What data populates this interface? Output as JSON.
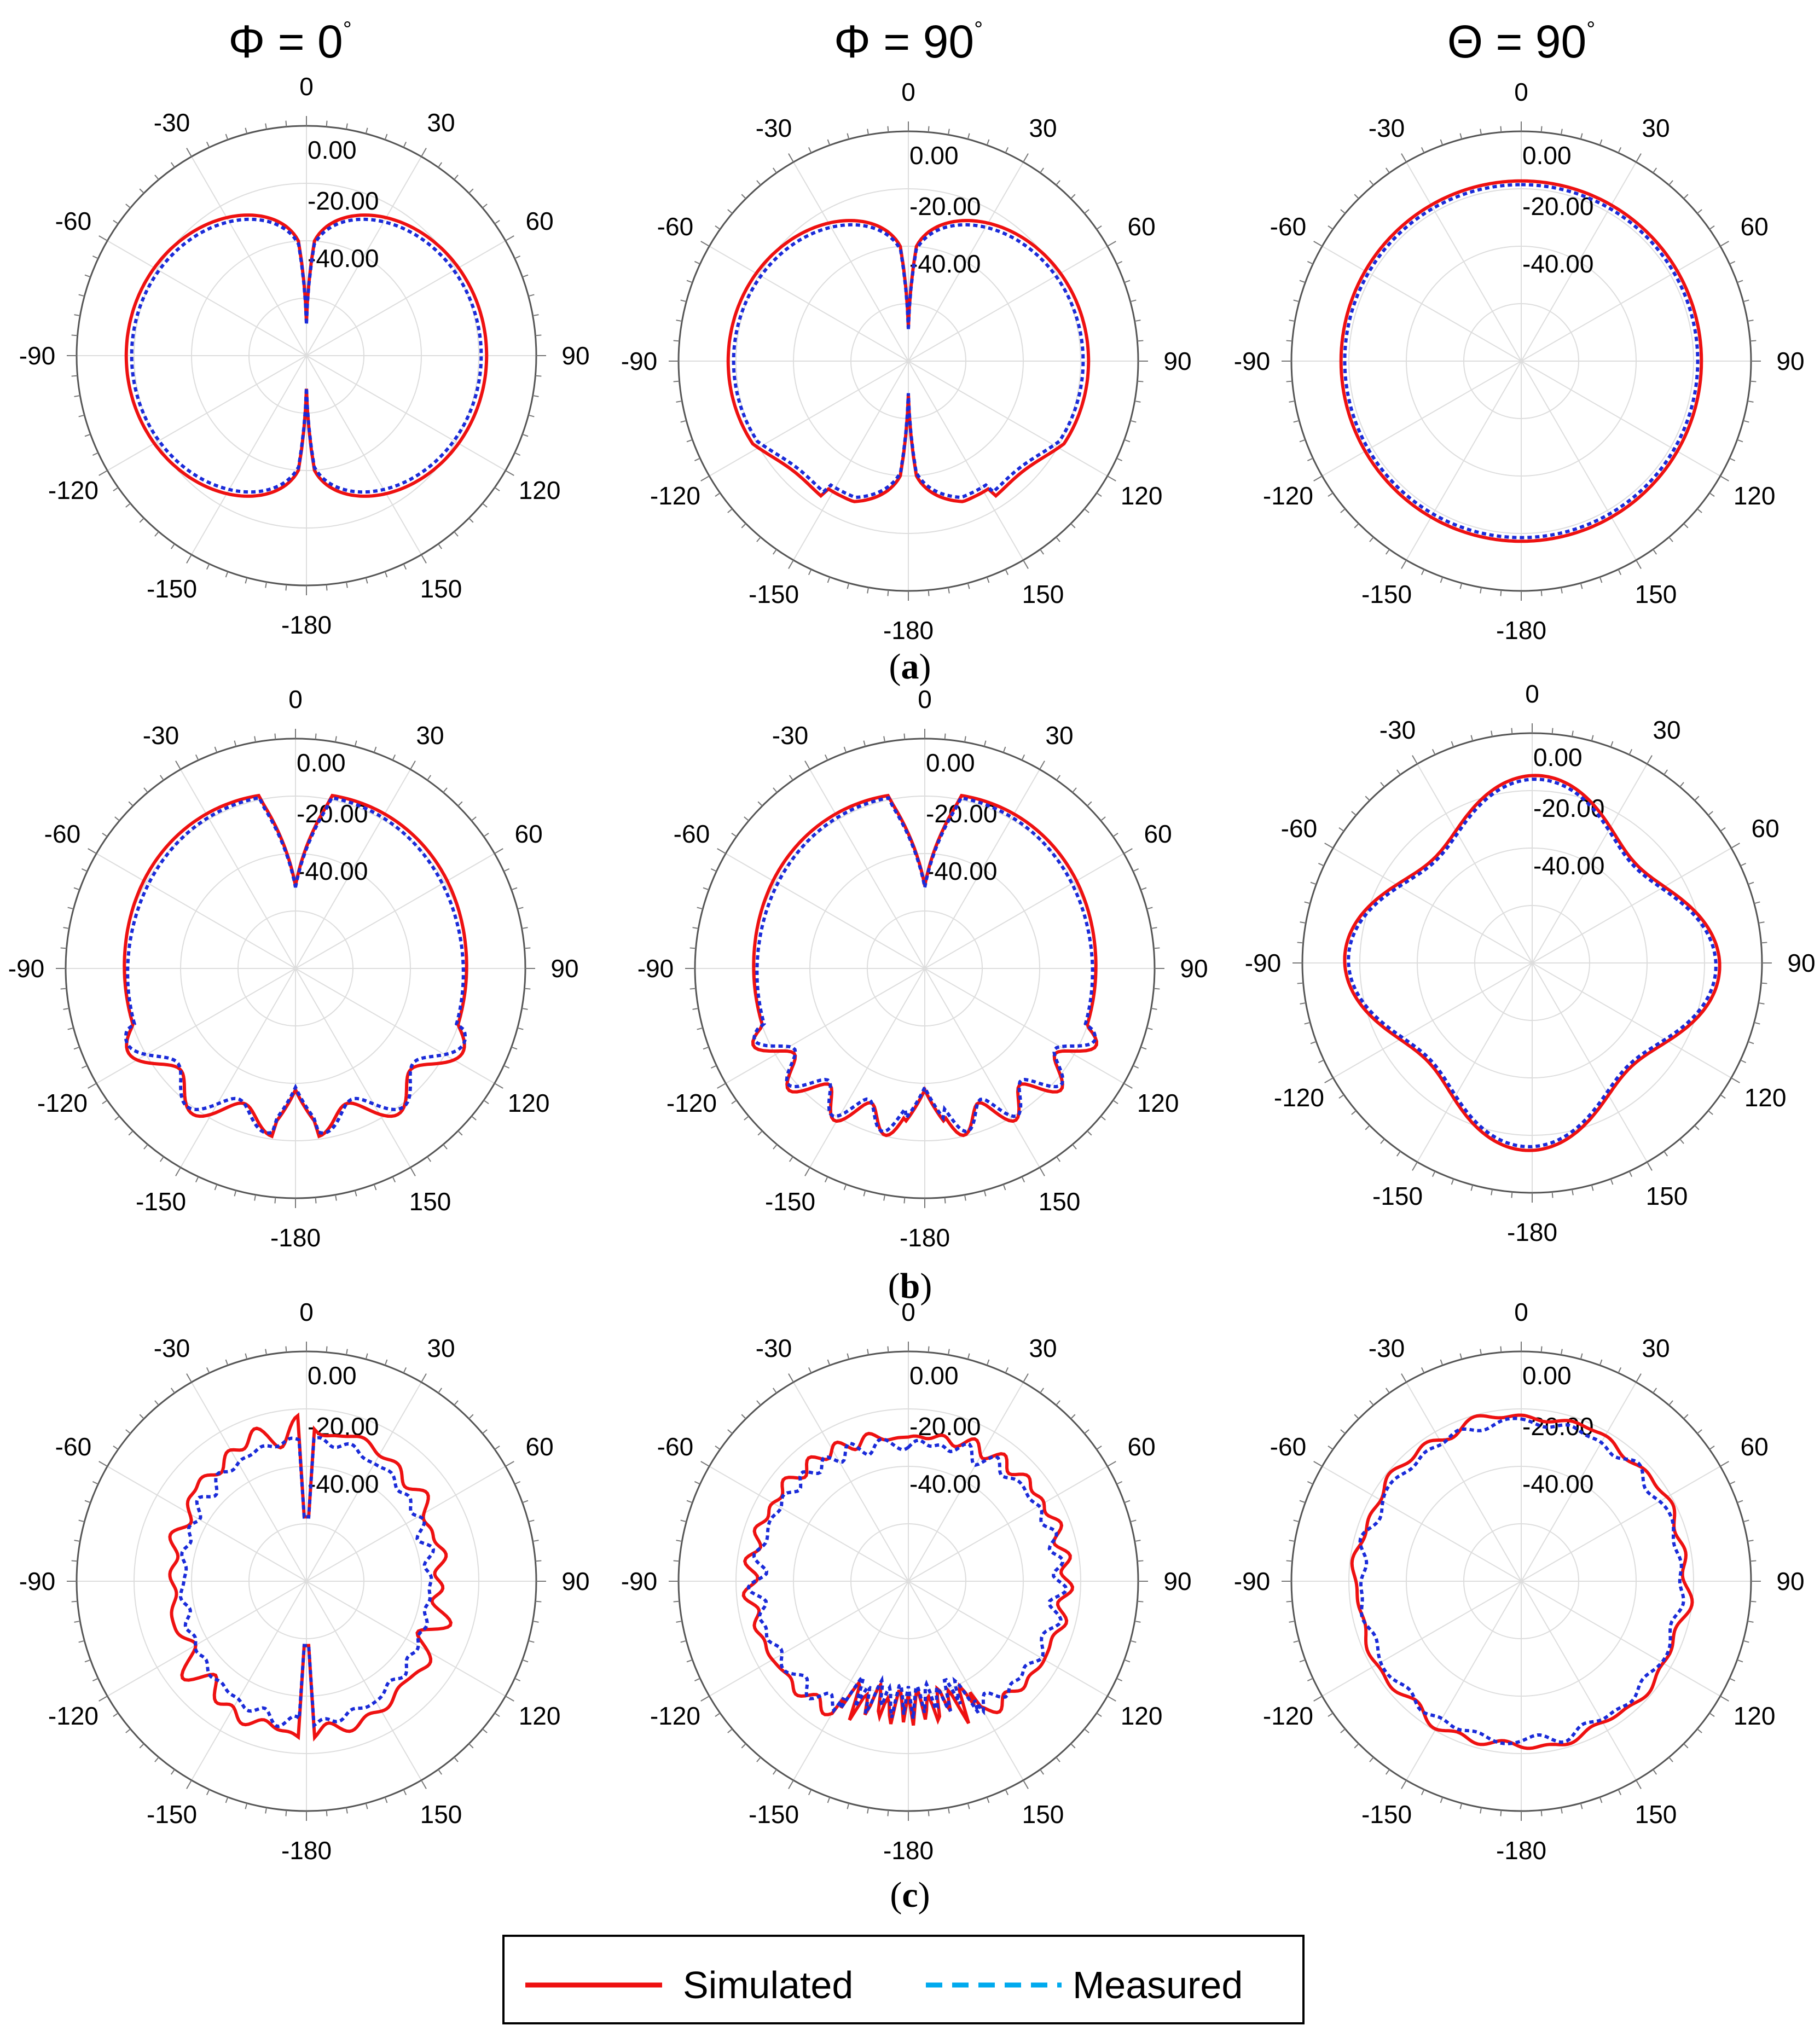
{
  "figure": {
    "column_titles": [
      {
        "main": "Φ = 0",
        "sup": "°"
      },
      {
        "main": "Φ = 90",
        "sup": "°"
      },
      {
        "main": "Θ = 90",
        "sup": "°"
      }
    ],
    "row_captions": [
      "a",
      "b",
      "c"
    ],
    "legend": [
      {
        "label": "Simulated",
        "color": "#ee1111",
        "style": "solid"
      },
      {
        "label": "Measured",
        "color": "#00aaee",
        "style": "dashed"
      }
    ]
  },
  "chart_data": [
    {
      "type": "polar",
      "row": "a",
      "column": "Φ = 0°",
      "angle_ticks": [
        "0",
        "30",
        "60",
        "90",
        "120",
        "150",
        "-180",
        "-150",
        "-120",
        "-90",
        "-60",
        "-30"
      ],
      "radial_labels": [
        "0.00",
        "-20.00",
        "-40.00"
      ],
      "rlim": [
        -50,
        0
      ],
      "series": [
        {
          "name": "Simulated",
          "model": {
            "kind": "sinshape",
            "floor": -46,
            "scale": 1.0
          }
        },
        {
          "name": "Measured",
          "model": {
            "kind": "sinshape",
            "floor": -46,
            "scale": 0.97
          }
        }
      ]
    },
    {
      "type": "polar",
      "row": "a",
      "column": "Φ = 90°",
      "angle_ticks": [
        "0",
        "30",
        "60",
        "90",
        "120",
        "150",
        "-180",
        "-150",
        "-120",
        "-90",
        "-60",
        "-30"
      ],
      "radial_labels": [
        "0.00",
        "-20.00",
        "-40.00"
      ],
      "rlim": [
        -50,
        0
      ],
      "series": [
        {
          "name": "Simulated",
          "model": {
            "kind": "sinshape",
            "floor": -46,
            "scale": 1.0,
            "rearShoulder": true
          }
        },
        {
          "name": "Measured",
          "model": {
            "kind": "sinshape",
            "floor": -46,
            "scale": 0.97,
            "rearShoulder": true
          }
        }
      ]
    },
    {
      "type": "polar",
      "row": "a",
      "column": "Θ = 90°",
      "angle_ticks": [
        "0",
        "30",
        "60",
        "90",
        "120",
        "150",
        "-180",
        "-150",
        "-120",
        "-90",
        "-60",
        "-30"
      ],
      "radial_labels": [
        "0.00",
        "-20.00",
        "-40.00"
      ],
      "rlim": [
        -50,
        0
      ],
      "series": [
        {
          "name": "Simulated",
          "model": {
            "kind": "circle",
            "r": 0.98
          }
        },
        {
          "name": "Measured",
          "model": {
            "kind": "circle",
            "r": 0.96
          }
        }
      ]
    },
    {
      "type": "polar",
      "row": "b",
      "column": "Φ = 0°",
      "angle_ticks": [
        "0",
        "30",
        "60",
        "90",
        "120",
        "150",
        "-180",
        "-150",
        "-120",
        "-90",
        "-60",
        "-30"
      ],
      "radial_labels": [
        "0.00",
        "-20.00",
        "-40.00"
      ],
      "rlim": [
        -50,
        0
      ],
      "series": [
        {
          "name": "Simulated",
          "model": {
            "kind": "backlobes",
            "nullDepth": 0.62,
            "ripple": 5,
            "scale": 1.0
          }
        },
        {
          "name": "Measured",
          "model": {
            "kind": "backlobes",
            "nullDepth": 0.62,
            "ripple": 5,
            "scale": 0.98,
            "phase": 0.6
          }
        }
      ]
    },
    {
      "type": "polar",
      "row": "b",
      "column": "Φ = 90°",
      "angle_ticks": [
        "0",
        "30",
        "60",
        "90",
        "120",
        "150",
        "-180",
        "-150",
        "-120",
        "-90",
        "-60",
        "-30"
      ],
      "radial_labels": [
        "0.00",
        "-20.00",
        "-40.00"
      ],
      "rlim": [
        -50,
        0
      ],
      "series": [
        {
          "name": "Simulated",
          "model": {
            "kind": "backlobes",
            "nullDepth": 0.55,
            "ripple": 8,
            "scale": 1.0
          }
        },
        {
          "name": "Measured",
          "model": {
            "kind": "backlobes",
            "nullDepth": 0.55,
            "ripple": 8,
            "scale": 0.98,
            "phase": 0.5
          }
        }
      ]
    },
    {
      "type": "polar",
      "row": "b",
      "column": "Θ = 90°",
      "angle_ticks": [
        "0",
        "30",
        "60",
        "90",
        "120",
        "150",
        "-180",
        "-150",
        "-120",
        "-90",
        "-60",
        "-30"
      ],
      "radial_labels": [
        "0.00",
        "-20.00",
        "-40.00"
      ],
      "rlim": [
        -50,
        0
      ],
      "series": [
        {
          "name": "Simulated",
          "model": {
            "kind": "clover",
            "lobes": 4,
            "depth": 0.12,
            "scale": 1.0
          }
        },
        {
          "name": "Measured",
          "model": {
            "kind": "clover",
            "lobes": 4,
            "depth": 0.12,
            "scale": 0.98
          }
        }
      ]
    },
    {
      "type": "polar",
      "row": "c",
      "column": "Φ = 0°",
      "angle_ticks": [
        "0",
        "30",
        "60",
        "90",
        "120",
        "150",
        "-180",
        "-150",
        "-120",
        "-90",
        "-60",
        "-30"
      ],
      "radial_labels": [
        "0.00",
        "-20.00",
        "-40.00"
      ],
      "rlim": [
        -50,
        0
      ],
      "series": [
        {
          "name": "Simulated",
          "model": {
            "kind": "noisy",
            "base": 0.78,
            "amp": 0.07,
            "seed": 3,
            "freq": 14,
            "null": true
          }
        },
        {
          "name": "Measured",
          "model": {
            "kind": "noisy",
            "base": 0.72,
            "amp": 0.06,
            "seed": 7,
            "freq": 16,
            "null": true
          }
        }
      ]
    },
    {
      "type": "polar",
      "row": "c",
      "column": "Φ = 90°",
      "angle_ticks": [
        "0",
        "30",
        "60",
        "90",
        "120",
        "150",
        "-180",
        "-150",
        "-120",
        "-90",
        "-60",
        "-30"
      ],
      "radial_labels": [
        "0.00",
        "-20.00",
        "-40.00"
      ],
      "rlim": [
        -50,
        0
      ],
      "series": [
        {
          "name": "Simulated",
          "model": {
            "kind": "noisywide",
            "base": 0.82,
            "amp": 0.06,
            "seed": 11,
            "freq": 18
          }
        },
        {
          "name": "Measured",
          "model": {
            "kind": "noisywide",
            "base": 0.78,
            "amp": 0.07,
            "seed": 5,
            "freq": 22
          }
        }
      ]
    },
    {
      "type": "polar",
      "row": "c",
      "column": "Θ = 90°",
      "angle_ticks": [
        "0",
        "30",
        "60",
        "90",
        "120",
        "150",
        "-180",
        "-150",
        "-120",
        "-90",
        "-60",
        "-30"
      ],
      "radial_labels": [
        "0.00",
        "-20.00",
        "-40.00"
      ],
      "rlim": [
        -50,
        0
      ],
      "series": [
        {
          "name": "Simulated",
          "model": {
            "kind": "noisyround",
            "base": 0.9,
            "amp": 0.05,
            "seed": 13,
            "freq": 10
          }
        },
        {
          "name": "Measured",
          "model": {
            "kind": "noisyround",
            "base": 0.87,
            "amp": 0.05,
            "seed": 17,
            "freq": 12
          }
        }
      ]
    }
  ]
}
